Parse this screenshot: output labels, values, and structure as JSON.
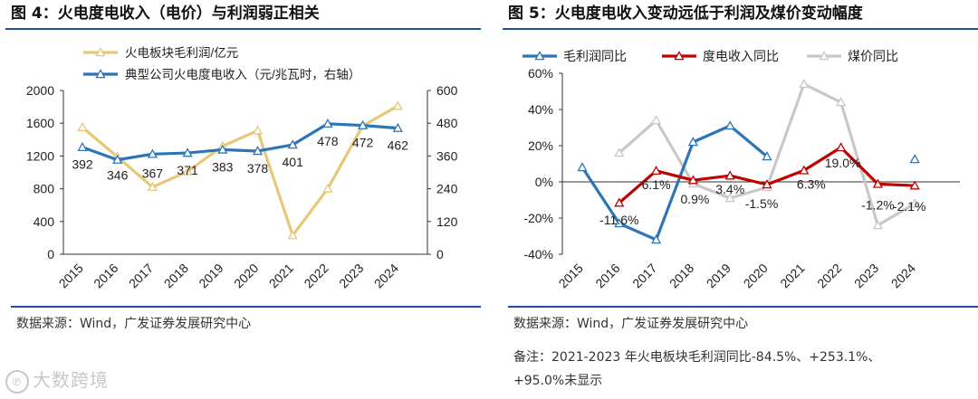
{
  "left": {
    "title": "图 4：火电度电收入（电价）与利润弱正相关",
    "source": "数据来源：Wind，广发证券发展研究中心",
    "chart_data": {
      "type": "line",
      "categories": [
        "2015",
        "2016",
        "2017",
        "2018",
        "2019",
        "2020",
        "2021",
        "2022",
        "2023",
        "2024"
      ],
      "series": [
        {
          "name": "火电板块毛利润/亿元",
          "axis": "left",
          "color": "#e6c877",
          "values": [
            1550,
            1190,
            820,
            1010,
            1320,
            1510,
            230,
            800,
            1570,
            1810
          ]
        },
        {
          "name": "典型公司火电度电收入（元/兆瓦时，右轴）",
          "axis": "right",
          "color": "#2e75b6",
          "values": [
            392,
            346,
            367,
            371,
            383,
            378,
            401,
            478,
            472,
            462
          ],
          "labels": [
            "392",
            "346",
            "367",
            "371",
            "383",
            "378",
            "401",
            "478",
            "472",
            "462"
          ]
        }
      ],
      "ylim_left": [
        0,
        2000
      ],
      "ylim_right": [
        0,
        600
      ],
      "yticks_left": [
        "0",
        "400",
        "800",
        "1200",
        "1600",
        "2000"
      ],
      "yticks_right": [
        "0",
        "120",
        "240",
        "360",
        "480",
        "600"
      ]
    }
  },
  "right": {
    "title": "图 5：火电度电收入变动远低于利润及煤价变动幅度",
    "source": "数据来源：Wind，广发证券发展研究中心",
    "note_line1": "备注：2021-2023 年火电板块毛利润同比-84.5%、+253.1%、",
    "note_line2": "+95.0%未显示",
    "chart_data": {
      "type": "line",
      "categories": [
        "2015",
        "2016",
        "2017",
        "2018",
        "2019",
        "2020",
        "2021",
        "2022",
        "2023",
        "2024"
      ],
      "series": [
        {
          "name": "毛利润同比",
          "color": "#2e75b6",
          "values": [
            8,
            -23,
            -32,
            22,
            31,
            14,
            null,
            null,
            null,
            12.5
          ]
        },
        {
          "name": "度电收入同比",
          "color": "#c00000",
          "values": [
            null,
            -11.6,
            6.1,
            0.9,
            3.4,
            -1.5,
            6.3,
            19.0,
            -1.2,
            -2.1
          ],
          "labels": [
            "",
            "-11.6%",
            "6.1%",
            "0.9%",
            "3.4%",
            "-1.5%",
            "6.3%",
            "19.0%",
            "-1.2%",
            "-2.1%"
          ]
        },
        {
          "name": "煤价同比",
          "color": "#c8c8c8",
          "values": [
            null,
            16,
            34,
            -1,
            -9,
            -3,
            54,
            44,
            -24,
            -12
          ]
        }
      ],
      "ylim": [
        -40,
        60
      ],
      "yticks": [
        "-40%",
        "-20%",
        "0%",
        "20%",
        "40%",
        "60%"
      ]
    }
  },
  "watermark": "大数跨境"
}
